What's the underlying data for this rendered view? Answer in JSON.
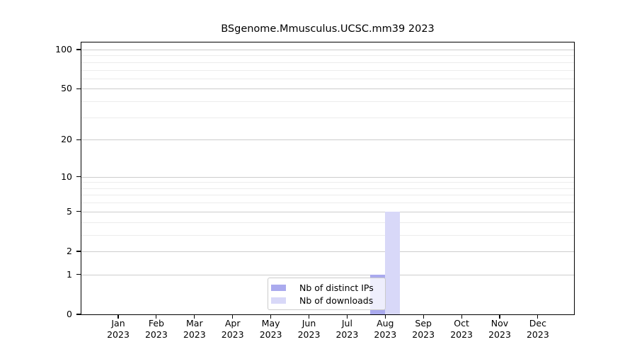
{
  "chart_data": {
    "type": "bar",
    "title": "BSgenome.Mmusculus.UCSC.mm39 2023",
    "categories": [
      "Jan 2023",
      "Feb 2023",
      "Mar 2023",
      "Apr 2023",
      "May 2023",
      "Jun 2023",
      "Jul 2023",
      "Aug 2023",
      "Sep 2023",
      "Oct 2023",
      "Nov 2023",
      "Dec 2023"
    ],
    "series": [
      {
        "name": "Nb of distinct IPs",
        "color": "#aaaaee",
        "values": [
          0,
          0,
          0,
          0,
          0,
          0,
          0,
          1,
          0,
          0,
          0,
          0
        ]
      },
      {
        "name": "Nb of downloads",
        "color": "#d8d8f8",
        "values": [
          0,
          0,
          0,
          0,
          0,
          0,
          0,
          5,
          0,
          0,
          0,
          0
        ]
      }
    ],
    "yscale": "log1p",
    "yticks": [
      0,
      1,
      2,
      5,
      10,
      20,
      50,
      100
    ],
    "minor_yticks": [
      3,
      4,
      6,
      7,
      8,
      9,
      30,
      40,
      60,
      70,
      80,
      90
    ],
    "ylim": [
      0,
      113
    ],
    "xlabel": "",
    "ylabel": "",
    "grid": "horizontal",
    "legend_position": "lower-center-inside",
    "colors": {
      "grid_major": "#cdcdcd",
      "grid_minor": "#ececec",
      "axis": "#000000",
      "text": "#000000",
      "background": "#ffffff"
    }
  }
}
